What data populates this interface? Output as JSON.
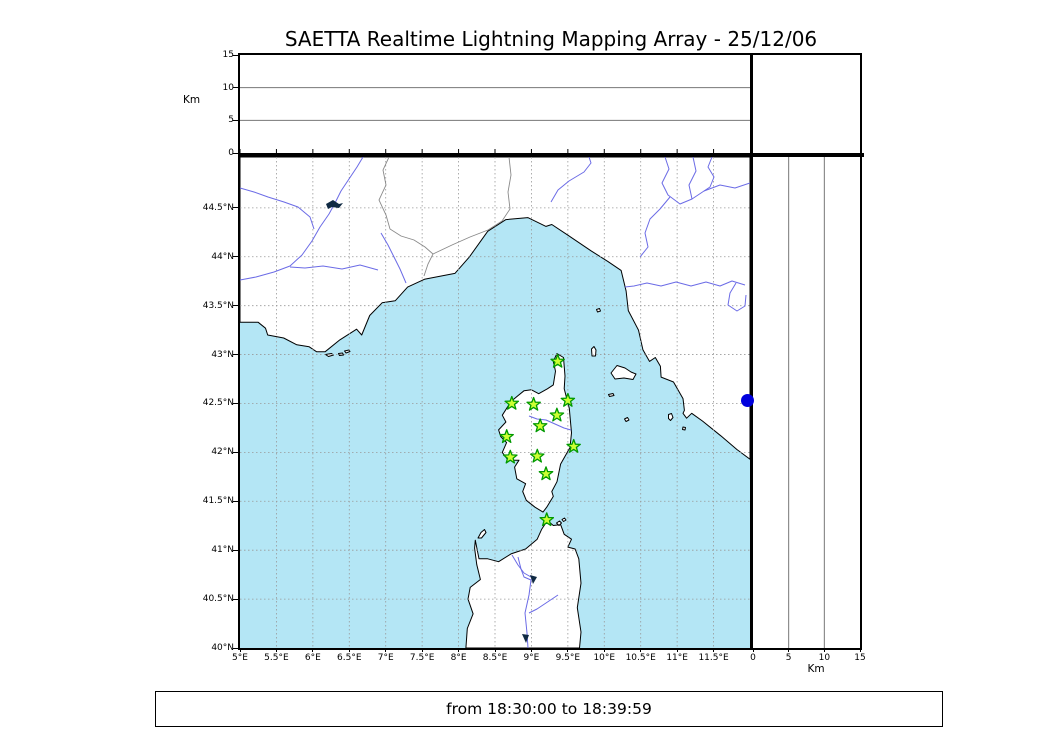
{
  "chart_data": {
    "type": "scatter",
    "title": "SAETTA Realtime Lightning Mapping Array - 25/12/06",
    "footer": "from 18:30:00 to 18:39:59",
    "map_panel": {
      "lon_range": [
        5,
        12
      ],
      "lat_range": [
        40,
        45.02
      ],
      "grid": "dashed",
      "lon_ticks": [
        {
          "value": 5,
          "label": "5°E"
        },
        {
          "value": 5.5,
          "label": "5.5°E"
        },
        {
          "value": 6,
          "label": "6°E"
        },
        {
          "value": 6.5,
          "label": "6.5°E"
        },
        {
          "value": 7,
          "label": "7°E"
        },
        {
          "value": 7.5,
          "label": "7.5°E"
        },
        {
          "value": 8,
          "label": "8°E"
        },
        {
          "value": 8.5,
          "label": "8.5°E"
        },
        {
          "value": 9,
          "label": "9°E"
        },
        {
          "value": 9.5,
          "label": "9.5°E"
        },
        {
          "value": 10,
          "label": "10°E"
        },
        {
          "value": 10.5,
          "label": "10.5°E"
        },
        {
          "value": 11,
          "label": "11°E"
        },
        {
          "value": 11.5,
          "label": "11.5°E"
        }
      ],
      "lat_ticks": [
        {
          "value": 44.5,
          "label": "44.5°N"
        },
        {
          "value": 44,
          "label": "44°N"
        },
        {
          "value": 43.5,
          "label": "43.5°N"
        },
        {
          "value": 43,
          "label": "43°N"
        },
        {
          "value": 42.5,
          "label": "42.5°N"
        },
        {
          "value": 42,
          "label": "42°N"
        },
        {
          "value": 41.5,
          "label": "41.5°N"
        },
        {
          "value": 41,
          "label": "41°N"
        },
        {
          "value": 40.5,
          "label": "40.5°N"
        },
        {
          "value": 40,
          "label": "40°N"
        }
      ]
    },
    "top_panel": {
      "ylabel": "Km",
      "range": [
        0,
        15
      ],
      "gridlines": [
        5,
        10
      ],
      "ticks": [
        {
          "value": 0,
          "label": "0"
        },
        {
          "value": 5,
          "label": "5"
        },
        {
          "value": 10,
          "label": "10"
        },
        {
          "value": 15,
          "label": "15"
        }
      ]
    },
    "right_panel": {
      "xlabel": "Km",
      "range": [
        0,
        15
      ],
      "gridlines": [
        5,
        10
      ],
      "ticks": [
        {
          "value": 0,
          "label": "0"
        },
        {
          "value": 5,
          "label": "5"
        },
        {
          "value": 10,
          "label": "10"
        },
        {
          "value": 15,
          "label": "15"
        }
      ]
    },
    "stations": {
      "marker": "star",
      "fill": "#ccff33",
      "edge": "#009900",
      "points": [
        {
          "lon": 9.36,
          "lat": 42.93
        },
        {
          "lon": 8.73,
          "lat": 42.5
        },
        {
          "lon": 9.03,
          "lat": 42.49
        },
        {
          "lon": 9.5,
          "lat": 42.53
        },
        {
          "lon": 9.35,
          "lat": 42.38
        },
        {
          "lon": 9.12,
          "lat": 42.27
        },
        {
          "lon": 8.66,
          "lat": 42.16
        },
        {
          "lon": 9.58,
          "lat": 42.06
        },
        {
          "lon": 8.71,
          "lat": 41.95
        },
        {
          "lon": 9.08,
          "lat": 41.96
        },
        {
          "lon": 9.2,
          "lat": 41.78
        },
        {
          "lon": 9.21,
          "lat": 41.31
        }
      ]
    },
    "sources": {
      "marker": "circle",
      "color": "#0000dd",
      "points": [
        {
          "lon": 11.96,
          "lat": 42.53,
          "alt_km": 0
        }
      ]
    },
    "colors": {
      "sea": "#b4e6f5",
      "land": "#ffffff",
      "coast": "#000000",
      "river": "#6b6be6",
      "country_border": "#8a8a8a",
      "grid": "#999999",
      "station_fill": "#ccff33",
      "station_edge": "#009900",
      "source_dot": "#0000dd"
    }
  }
}
